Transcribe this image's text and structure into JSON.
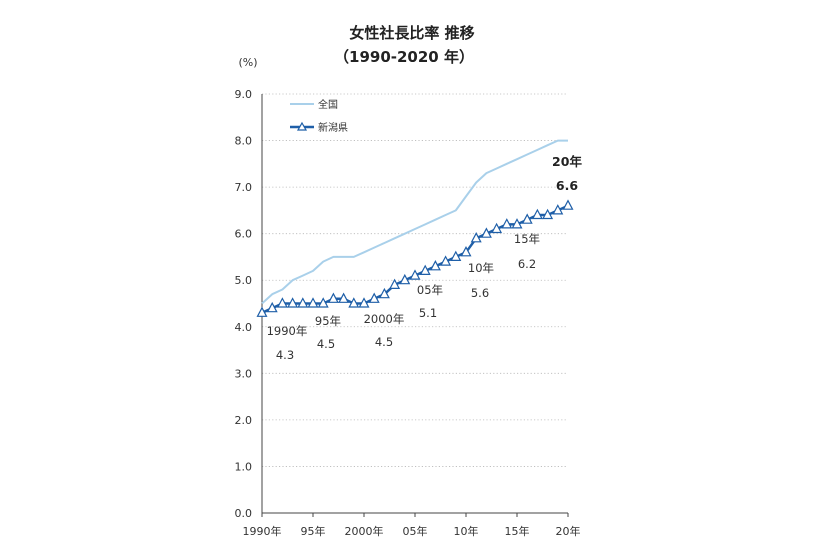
{
  "chart_data": {
    "type": "line",
    "title": "女性社長比率 推移",
    "subtitle": "（1990-2020 年）",
    "ylabel": "(%)",
    "ylim": [
      0,
      9
    ],
    "yticks": [
      "0.0",
      "1.0",
      "2.0",
      "3.0",
      "4.0",
      "5.0",
      "6.0",
      "7.0",
      "8.0",
      "9.0"
    ],
    "xlim": [
      1990,
      2020
    ],
    "xticks": [
      {
        "x": 1990,
        "label": "1990年"
      },
      {
        "x": 1995,
        "label": "95年"
      },
      {
        "x": 2000,
        "label": "2000年"
      },
      {
        "x": 2005,
        "label": "05年"
      },
      {
        "x": 2010,
        "label": "10年"
      },
      {
        "x": 2015,
        "label": "15年"
      },
      {
        "x": 2020,
        "label": "20年"
      }
    ],
    "grid": true,
    "legend_position": "top-left",
    "series": [
      {
        "name": "全国",
        "color": "#a9d0ea",
        "marker": "none",
        "x": [
          1990,
          1991,
          1992,
          1993,
          1994,
          1995,
          1996,
          1997,
          1998,
          1999,
          2000,
          2001,
          2002,
          2003,
          2004,
          2005,
          2006,
          2007,
          2008,
          2009,
          2010,
          2011,
          2012,
          2013,
          2014,
          2015,
          2016,
          2017,
          2018,
          2019,
          2020
        ],
        "values": [
          4.5,
          4.7,
          4.8,
          5.0,
          5.1,
          5.2,
          5.4,
          5.5,
          5.5,
          5.5,
          5.6,
          5.7,
          5.8,
          5.9,
          6.0,
          6.1,
          6.2,
          6.3,
          6.4,
          6.5,
          6.8,
          7.1,
          7.3,
          7.4,
          7.5,
          7.6,
          7.7,
          7.8,
          7.9,
          8.0,
          8.0
        ]
      },
      {
        "name": "新潟県",
        "color": "#1f5fa8",
        "marker": "triangle",
        "x": [
          1990,
          1991,
          1992,
          1993,
          1994,
          1995,
          1996,
          1997,
          1998,
          1999,
          2000,
          2001,
          2002,
          2003,
          2004,
          2005,
          2006,
          2007,
          2008,
          2009,
          2010,
          2011,
          2012,
          2013,
          2014,
          2015,
          2016,
          2017,
          2018,
          2019,
          2020
        ],
        "values": [
          4.3,
          4.4,
          4.5,
          4.5,
          4.5,
          4.5,
          4.5,
          4.6,
          4.6,
          4.5,
          4.5,
          4.6,
          4.7,
          4.9,
          5.0,
          5.1,
          5.2,
          5.3,
          5.4,
          5.5,
          5.6,
          5.9,
          6.0,
          6.1,
          6.2,
          6.2,
          6.3,
          6.4,
          6.4,
          6.5,
          6.6
        ]
      }
    ],
    "annotations": [
      {
        "year": "1990年",
        "value": "4.3"
      },
      {
        "year": "95年",
        "value": "4.5"
      },
      {
        "year": "2000年",
        "value": "4.5"
      },
      {
        "year": "05年",
        "value": "5.1"
      },
      {
        "year": "10年",
        "value": "5.6"
      },
      {
        "year": "15年",
        "value": "6.2"
      },
      {
        "year": "20年",
        "value": "6.6",
        "bold": true
      }
    ]
  }
}
